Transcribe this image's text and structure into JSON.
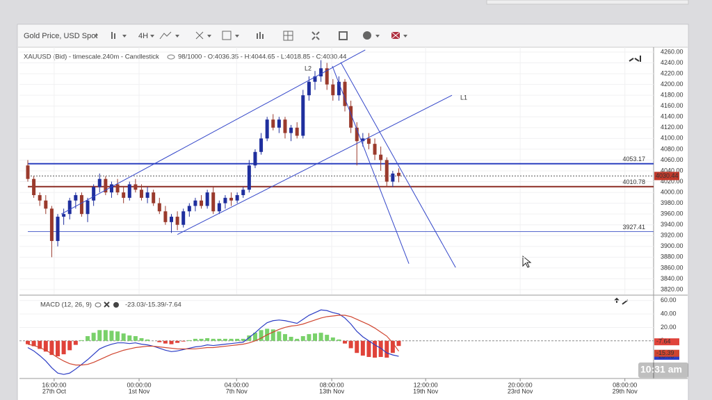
{
  "toolbar": {
    "symbol": "Gold Price, USD Spot",
    "timeframe": "4H"
  },
  "clock": "10:31 am",
  "chart_data": [
    {
      "type": "candlestick",
      "title": "XAUUSD (Bid) - timescale.240m - Candlestick",
      "ohlc_text": "98/1000 - O:4036.35 - H:4044.65 - L:4018.85 - C:4030.44",
      "up_color": "#1f2f9e",
      "down_color": "#9a3a2c",
      "ohlc": [
        [
          4050,
          4060,
          4020,
          4025
        ],
        [
          4025,
          4030,
          3990,
          3995
        ],
        [
          3995,
          4000,
          3975,
          3985
        ],
        [
          3985,
          3995,
          3960,
          3970
        ],
        [
          3970,
          3975,
          3880,
          3910
        ],
        [
          3910,
          3960,
          3900,
          3955
        ],
        [
          3955,
          3970,
          3940,
          3960
        ],
        [
          3960,
          3990,
          3950,
          3985
        ],
        [
          3985,
          4000,
          3970,
          3995
        ],
        [
          3995,
          4000,
          3955,
          3960
        ],
        [
          3960,
          3990,
          3945,
          3985
        ],
        [
          3985,
          4015,
          3975,
          4010
        ],
        [
          4010,
          4035,
          4000,
          4025
        ],
        [
          4025,
          4030,
          3995,
          4000
        ],
        [
          4000,
          4020,
          3990,
          4015
        ],
        [
          4015,
          4025,
          3995,
          4000
        ],
        [
          4000,
          4010,
          3980,
          3990
        ],
        [
          3990,
          4020,
          3985,
          4015
        ],
        [
          4015,
          4025,
          4000,
          4005
        ],
        [
          4005,
          4015,
          3985,
          3990
        ],
        [
          3990,
          4010,
          3980,
          4000
        ],
        [
          4000,
          4005,
          3975,
          3980
        ],
        [
          3980,
          3990,
          3960,
          3965
        ],
        [
          3965,
          3975,
          3940,
          3945
        ],
        [
          3945,
          3960,
          3925,
          3955
        ],
        [
          3955,
          3965,
          3930,
          3940
        ],
        [
          3940,
          3970,
          3935,
          3965
        ],
        [
          3965,
          3980,
          3955,
          3975
        ],
        [
          3975,
          3990,
          3965,
          3985
        ],
        [
          3985,
          3995,
          3970,
          3975
        ],
        [
          3975,
          4005,
          3970,
          4000
        ],
        [
          4000,
          4010,
          3960,
          3965
        ],
        [
          3965,
          3985,
          3960,
          3980
        ],
        [
          3980,
          3995,
          3970,
          3990
        ],
        [
          3990,
          4000,
          3975,
          3985
        ],
        [
          3985,
          4000,
          3980,
          3995
        ],
        [
          3995,
          4010,
          3990,
          4005
        ],
        [
          4005,
          4060,
          4000,
          4050
        ],
        [
          4050,
          4080,
          4045,
          4075
        ],
        [
          4075,
          4110,
          4070,
          4100
        ],
        [
          4100,
          4140,
          4095,
          4135
        ],
        [
          4135,
          4145,
          4115,
          4120
        ],
        [
          4120,
          4140,
          4110,
          4135
        ],
        [
          4135,
          4140,
          4100,
          4110
        ],
        [
          4110,
          4125,
          4095,
          4120
        ],
        [
          4120,
          4130,
          4100,
          4105
        ],
        [
          4105,
          4190,
          4100,
          4180
        ],
        [
          4180,
          4215,
          4170,
          4205
        ],
        [
          4205,
          4225,
          4190,
          4215
        ],
        [
          4215,
          4245,
          4205,
          4230
        ],
        [
          4230,
          4240,
          4190,
          4200
        ],
        [
          4200,
          4210,
          4170,
          4180
        ],
        [
          4180,
          4215,
          4170,
          4205
        ],
        [
          4205,
          4210,
          4150,
          4160
        ],
        [
          4160,
          4170,
          4110,
          4120
        ],
        [
          4120,
          4130,
          4050,
          4095
        ],
        [
          4095,
          4110,
          4085,
          4100
        ],
        [
          4100,
          4110,
          4080,
          4090
        ],
        [
          4090,
          4100,
          4060,
          4070
        ],
        [
          4070,
          4085,
          4040,
          4060
        ],
        [
          4060,
          4065,
          4010,
          4020
        ],
        [
          4020,
          4040,
          4010,
          4035
        ],
        [
          4036.35,
          4044.65,
          4018.85,
          4030.44
        ]
      ],
      "xlim": [
        0,
        104.6
      ],
      "xticks": [
        {
          "value": 4.4,
          "label": "16:00:00"
        },
        {
          "value": 18.6,
          "label": "00:00:00"
        },
        {
          "value": 34.9,
          "label": "04:00:00"
        },
        {
          "value": 50.8,
          "label": "08:00:00"
        },
        {
          "value": 66.5,
          "label": "12:00:00"
        },
        {
          "value": 82.3,
          "label": "20:00:00"
        },
        {
          "value": 99.8,
          "label": "08:00:00"
        }
      ],
      "xtick_dates": [
        "27th Oct",
        "1st Nov",
        "7th Nov",
        "13th Nov",
        "19th Nov",
        "23rd Nov",
        "29th Nov"
      ],
      "ylim": [
        3820,
        4260
      ],
      "yticks": [
        {
          "value": 3820,
          "label": "3820.00"
        },
        {
          "value": 3840,
          "label": "3840.00"
        },
        {
          "value": 3860,
          "label": "3860.00"
        },
        {
          "value": 3880,
          "label": "3880.00"
        },
        {
          "value": 3900,
          "label": "3900.00"
        },
        {
          "value": 3920,
          "label": "3920.00"
        },
        {
          "value": 3940,
          "label": "3940.00"
        },
        {
          "value": 3960,
          "label": "3960.00"
        },
        {
          "value": 3980,
          "label": "3980.00"
        },
        {
          "value": 4000,
          "label": "4000.00"
        },
        {
          "value": 4020,
          "label": "4020.00"
        },
        {
          "value": 4040,
          "label": "4040.00"
        },
        {
          "value": 4060,
          "label": "4060.00"
        },
        {
          "value": 4080,
          "label": "4080.00"
        },
        {
          "value": 4100,
          "label": "4100.00"
        },
        {
          "value": 4120,
          "label": "4120.00"
        },
        {
          "value": 4140,
          "label": "4140.00"
        },
        {
          "value": 4160,
          "label": "4160.00"
        },
        {
          "value": 4180,
          "label": "4180.00"
        },
        {
          "value": 4200,
          "label": "4200.00"
        },
        {
          "value": 4220,
          "label": "4220.00"
        },
        {
          "value": 4240,
          "label": "4240.00"
        },
        {
          "value": 4260,
          "label": "4260.00"
        }
      ],
      "levels": [
        {
          "value": 4053.17,
          "color": "#2a3fbf"
        },
        {
          "value": 4010.78,
          "color": "#8b2a22"
        },
        {
          "value": 3927.41,
          "color": "#5566cc"
        }
      ],
      "last_price": {
        "value": 4030.44,
        "color": "#c0392b"
      },
      "trendline_color": "#3346c9",
      "trendlines": [
        {
          "x": [
            5.6,
            56.4
          ],
          "y": [
            3960,
            4264
          ]
        },
        {
          "name": "L1",
          "x": [
            25,
            70.9
          ],
          "y": [
            3922,
            4180
          ]
        },
        {
          "name": "L2",
          "x": [
            50.9,
            63.7
          ],
          "y": [
            4234,
            3868
          ]
        },
        {
          "x": [
            52.3,
            71.5
          ],
          "y": [
            4241,
            3861
          ]
        }
      ],
      "grid": true
    },
    {
      "type": "macd",
      "title": "MACD (12, 26, 9)",
      "subtitle": "-23.03/-15.39/-7.64",
      "xlim": [
        0,
        104.6
      ],
      "ylim": [
        -56,
        68
      ],
      "yticks": [
        {
          "value": 60,
          "label": "60.00"
        },
        {
          "value": 40,
          "label": "40.00"
        },
        {
          "value": 20,
          "label": "20.00"
        },
        0
      ],
      "series": [
        {
          "color": "#2b3cc4",
          "values": [
            -10,
            -15,
            -22,
            -30,
            -40,
            -48,
            -50,
            -48,
            -42,
            -35,
            -28,
            -20,
            -12,
            -8,
            -5,
            -3,
            -3,
            -4,
            -3,
            -5,
            -6,
            -8,
            -11,
            -14,
            -16,
            -15,
            -13,
            -11,
            -9,
            -8,
            -6,
            -7,
            -6,
            -5,
            -4,
            -3,
            -2,
            5,
            12,
            20,
            27,
            30,
            31,
            30,
            28,
            26,
            32,
            38,
            42,
            46,
            45,
            42,
            40,
            34,
            25,
            14,
            6,
            0,
            -6,
            -11,
            -18,
            -21,
            -23.03
          ]
        },
        {
          "color": "#d0452f",
          "values": [
            -5,
            -7,
            -10,
            -14,
            -19,
            -25,
            -30,
            -34,
            -36,
            -36,
            -35,
            -32,
            -28,
            -24,
            -20,
            -17,
            -14,
            -12,
            -10,
            -9,
            -8,
            -8,
            -9,
            -10,
            -11,
            -12,
            -12,
            -12,
            -12,
            -11,
            -10,
            -10,
            -9,
            -8,
            -7,
            -6,
            -5,
            -3,
            0,
            4,
            9,
            13,
            17,
            20,
            22,
            23,
            25,
            28,
            31,
            34,
            36,
            37,
            38,
            38,
            36,
            32,
            28,
            24,
            19,
            13,
            7,
            -3,
            -15.39
          ]
        }
      ],
      "histogram": {
        "up_color": "#79d16a",
        "down_color": "#e0433a",
        "values": [
          -5,
          -8,
          -12,
          -16,
          -21,
          -23,
          -20,
          -14,
          -6,
          1,
          7,
          12,
          16,
          16,
          15,
          14,
          11,
          8,
          7,
          4,
          2,
          0,
          -2,
          -4,
          -5,
          -3,
          -1,
          1,
          3,
          3,
          4,
          3,
          3,
          3,
          3,
          3,
          3,
          8,
          12,
          16,
          18,
          17,
          14,
          10,
          6,
          3,
          7,
          10,
          11,
          12,
          9,
          5,
          2,
          -4,
          -11,
          -18,
          -22,
          -24,
          -25,
          -24,
          -25,
          -18,
          -7.64
        ]
      }
    }
  ]
}
